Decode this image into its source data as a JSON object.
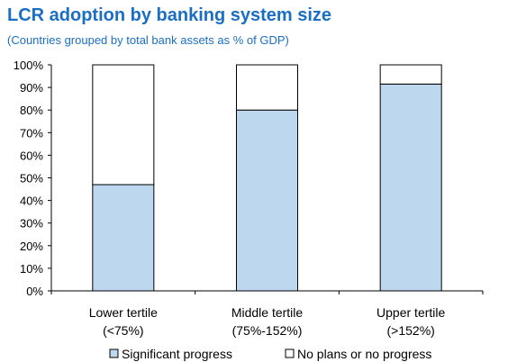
{
  "title": "LCR adoption by banking system size",
  "subtitle": "(Countries grouped by total bank assets as % of GDP)",
  "colors": {
    "title": "#1a6fc4",
    "significant": "#bdd7ee",
    "no_plans": "#ffffff",
    "bar_outline": "#000000",
    "axis": "#000000"
  },
  "chart_data": {
    "type": "bar",
    "stacked": true,
    "percent_axis": true,
    "categories": [
      [
        "Lower tertile",
        "(<75%)"
      ],
      [
        "Middle tertile",
        "(75%-152%)"
      ],
      [
        "Upper tertile",
        "(>152%)"
      ]
    ],
    "series": [
      {
        "name": "Significant progress",
        "values": [
          47,
          80,
          91.5
        ]
      },
      {
        "name": "No plans or no progress",
        "values": [
          53,
          20,
          8.5
        ]
      }
    ],
    "y_ticks": [
      "0%",
      "10%",
      "20%",
      "30%",
      "40%",
      "50%",
      "60%",
      "70%",
      "80%",
      "90%",
      "100%"
    ],
    "ylim": [
      0,
      100
    ],
    "grid": false,
    "legend_position": "bottom"
  }
}
